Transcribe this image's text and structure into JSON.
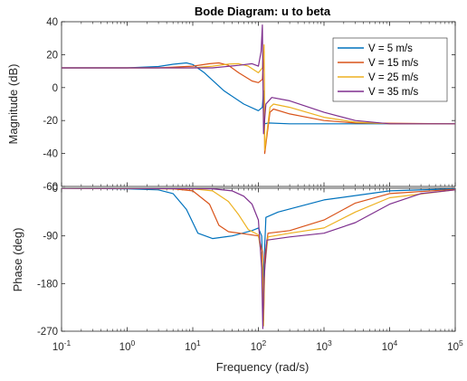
{
  "chart_data": {
    "type": "line",
    "title": "Bode Diagram: u to beta",
    "xlabel": "Frequency  (rad/s)",
    "x_scale": "log",
    "xlim": [
      0.1,
      100000
    ],
    "x_ticks": [
      {
        "value": 0.1,
        "base": "10",
        "exp": "-1"
      },
      {
        "value": 1,
        "base": "10",
        "exp": "0"
      },
      {
        "value": 10,
        "base": "10",
        "exp": "1"
      },
      {
        "value": 100,
        "base": "10",
        "exp": "2"
      },
      {
        "value": 1000,
        "base": "10",
        "exp": "3"
      },
      {
        "value": 10000,
        "base": "10",
        "exp": "4"
      },
      {
        "value": 100000,
        "base": "10",
        "exp": "5"
      }
    ],
    "grid": false,
    "legend_position": "top-right",
    "panels": [
      {
        "id": "magnitude",
        "ylabel": "Magnitude (dB)",
        "ylim": [
          -60,
          40
        ],
        "y_ticks": [
          "40",
          "20",
          "0",
          "-20",
          "-40",
          "-60"
        ],
        "y_tick_values": [
          40,
          20,
          0,
          -20,
          -40,
          -60
        ],
        "series": [
          {
            "name": "V = 5 m/s",
            "color": "#0072BD",
            "points": [
              [
                0.1,
                12
              ],
              [
                1,
                12
              ],
              [
                3,
                12.8
              ],
              [
                5,
                14.2
              ],
              [
                8,
                15
              ],
              [
                10,
                14
              ],
              [
                15,
                9
              ],
              [
                30,
                -2
              ],
              [
                60,
                -10
              ],
              [
                100,
                -14
              ],
              [
                115,
                -12
              ],
              [
                120,
                -2
              ],
              [
                125,
                -22
              ],
              [
                140,
                -21.5
              ],
              [
                300,
                -22
              ],
              [
                100000,
                -22
              ]
            ]
          },
          {
            "name": "V = 15 m/s",
            "color": "#D95319",
            "points": [
              [
                0.1,
                12
              ],
              [
                3,
                12
              ],
              [
                10,
                13
              ],
              [
                18,
                14.5
              ],
              [
                25,
                15
              ],
              [
                35,
                13.5
              ],
              [
                50,
                9
              ],
              [
                80,
                4
              ],
              [
                100,
                3
              ],
              [
                115,
                5
              ],
              [
                122,
                22
              ],
              [
                125,
                -40
              ],
              [
                150,
                -15
              ],
              [
                170,
                -13
              ],
              [
                300,
                -16
              ],
              [
                1000,
                -20
              ],
              [
                3000,
                -21.5
              ],
              [
                100000,
                -22
              ]
            ]
          },
          {
            "name": "V = 25 m/s",
            "color": "#EDB120",
            "points": [
              [
                0.1,
                12
              ],
              [
                10,
                12
              ],
              [
                20,
                13
              ],
              [
                35,
                14.3
              ],
              [
                50,
                14.5
              ],
              [
                70,
                13
              ],
              [
                100,
                9
              ],
              [
                115,
                12
              ],
              [
                122,
                26
              ],
              [
                125,
                -38
              ],
              [
                150,
                -12
              ],
              [
                170,
                -10
              ],
              [
                300,
                -12
              ],
              [
                1000,
                -18
              ],
              [
                3000,
                -21
              ],
              [
                10000,
                -22
              ],
              [
                100000,
                -22
              ]
            ]
          },
          {
            "name": "V = 35 m/s",
            "color": "#7E2F8E",
            "points": [
              [
                0.1,
                12
              ],
              [
                20,
                12
              ],
              [
                50,
                13.5
              ],
              [
                80,
                14.5
              ],
              [
                100,
                13
              ],
              [
                110,
                22
              ],
              [
                115,
                38
              ],
              [
                120,
                -28
              ],
              [
                130,
                -10
              ],
              [
                160,
                -6
              ],
              [
                300,
                -8
              ],
              [
                1000,
                -15
              ],
              [
                3000,
                -20
              ],
              [
                10000,
                -22
              ],
              [
                100000,
                -22
              ]
            ]
          }
        ]
      },
      {
        "id": "phase",
        "ylabel": "Phase (deg)",
        "ylim": [
          -270,
          0
        ],
        "y_ticks": [
          "0",
          "-90",
          "-180",
          "-270"
        ],
        "y_tick_values": [
          0,
          -90,
          -180,
          -270
        ],
        "series": [
          {
            "name": "V = 5 m/s",
            "color": "#0072BD",
            "points": [
              [
                0.1,
                0
              ],
              [
                1,
                -1
              ],
              [
                3,
                -3
              ],
              [
                5,
                -10
              ],
              [
                8,
                -40
              ],
              [
                12,
                -85
              ],
              [
                20,
                -95
              ],
              [
                40,
                -90
              ],
              [
                80,
                -80
              ],
              [
                100,
                -75
              ],
              [
                112,
                -90
              ],
              [
                118,
                -180
              ],
              [
                125,
                -110
              ],
              [
                130,
                -55
              ],
              [
                200,
                -45
              ],
              [
                1000,
                -22
              ],
              [
                10000,
                -5
              ],
              [
                100000,
                -1
              ]
            ]
          },
          {
            "name": "V = 15 m/s",
            "color": "#D95319",
            "points": [
              [
                0.1,
                0
              ],
              [
                5,
                -1
              ],
              [
                10,
                -5
              ],
              [
                18,
                -30
              ],
              [
                25,
                -70
              ],
              [
                35,
                -82
              ],
              [
                60,
                -86
              ],
              [
                100,
                -90
              ],
              [
                115,
                -120
              ],
              [
                120,
                -250
              ],
              [
                125,
                -130
              ],
              [
                140,
                -85
              ],
              [
                300,
                -80
              ],
              [
                1000,
                -60
              ],
              [
                3000,
                -28
              ],
              [
                10000,
                -10
              ],
              [
                100000,
                -2
              ]
            ]
          },
          {
            "name": "V = 25 m/s",
            "color": "#EDB120",
            "points": [
              [
                0.1,
                0
              ],
              [
                10,
                -1
              ],
              [
                20,
                -5
              ],
              [
                35,
                -25
              ],
              [
                50,
                -50
              ],
              [
                70,
                -78
              ],
              [
                100,
                -88
              ],
              [
                115,
                -140
              ],
              [
                120,
                -260
              ],
              [
                125,
                -150
              ],
              [
                140,
                -92
              ],
              [
                300,
                -85
              ],
              [
                1000,
                -75
              ],
              [
                3000,
                -45
              ],
              [
                10000,
                -18
              ],
              [
                100000,
                -3
              ]
            ]
          },
          {
            "name": "V = 35 m/s",
            "color": "#7E2F8E",
            "points": [
              [
                0.1,
                0
              ],
              [
                20,
                -1
              ],
              [
                40,
                -5
              ],
              [
                60,
                -15
              ],
              [
                80,
                -30
              ],
              [
                100,
                -60
              ],
              [
                112,
                -150
              ],
              [
                117,
                -265
              ],
              [
                122,
                -170
              ],
              [
                135,
                -98
              ],
              [
                300,
                -92
              ],
              [
                1000,
                -85
              ],
              [
                3000,
                -65
              ],
              [
                10000,
                -30
              ],
              [
                30000,
                -10
              ],
              [
                100000,
                -3
              ]
            ]
          }
        ]
      }
    ]
  }
}
